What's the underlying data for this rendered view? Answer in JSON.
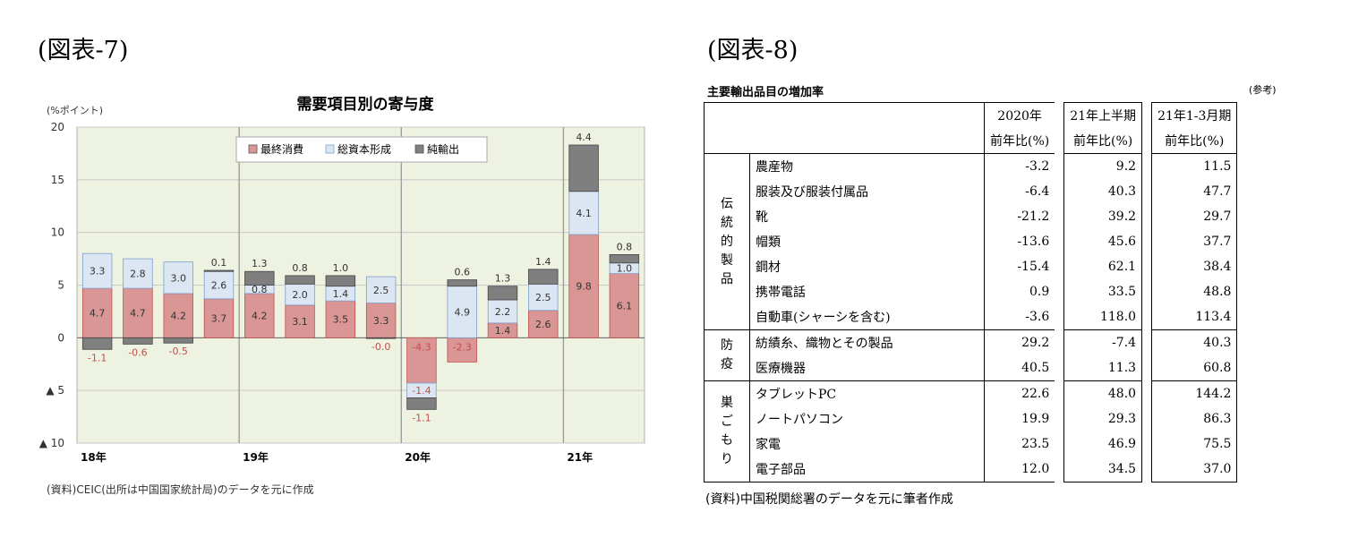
{
  "figure7": {
    "fig_title": "(図表-7)",
    "source": "(資料)CEIC(出所は中国国家統計局)のデータを元に作成"
  },
  "figure8": {
    "fig_title": "(図表-8)",
    "table_title": "主要輸出品目の増加率",
    "reference": "(参考)",
    "source": "(資料)中国税関総署のデータを元に筆者作成",
    "headers": {
      "col1": [
        "2020年",
        "前年比(%)"
      ],
      "col2": [
        "21年上半期",
        "前年比(%)"
      ],
      "col3": [
        "21年1-3月期",
        "前年比(%)"
      ]
    },
    "groups": [
      {
        "category": "伝統的製品",
        "items": [
          {
            "name": "農産物",
            "v2020": "-3.2",
            "h1_21": "9.2",
            "q1_21": "11.5"
          },
          {
            "name": "服装及び服装付属品",
            "v2020": "-6.4",
            "h1_21": "40.3",
            "q1_21": "47.7"
          },
          {
            "name": "靴",
            "v2020": "-21.2",
            "h1_21": "39.2",
            "q1_21": "29.7"
          },
          {
            "name": "帽類",
            "v2020": "-13.6",
            "h1_21": "45.6",
            "q1_21": "37.7"
          },
          {
            "name": "鋼材",
            "v2020": "-15.4",
            "h1_21": "62.1",
            "q1_21": "38.4"
          },
          {
            "name": "携帯電話",
            "v2020": "0.9",
            "h1_21": "33.5",
            "q1_21": "48.8"
          },
          {
            "name": "自動車(シャーシを含む)",
            "v2020": "-3.6",
            "h1_21": "118.0",
            "q1_21": "113.4"
          }
        ]
      },
      {
        "category": "防疫",
        "items": [
          {
            "name": "紡績糸、織物とその製品",
            "v2020": "29.2",
            "h1_21": "-7.4",
            "q1_21": "40.3"
          },
          {
            "name": "医療機器",
            "v2020": "40.5",
            "h1_21": "11.3",
            "q1_21": "60.8"
          }
        ]
      },
      {
        "category": "巣ごもり",
        "items": [
          {
            "name": "タブレットPC",
            "v2020": "22.6",
            "h1_21": "48.0",
            "q1_21": "144.2"
          },
          {
            "name": "ノートパソコン",
            "v2020": "19.9",
            "h1_21": "29.3",
            "q1_21": "86.3"
          },
          {
            "name": "家電",
            "v2020": "23.5",
            "h1_21": "46.9",
            "q1_21": "75.5"
          },
          {
            "name": "電子部品",
            "v2020": "12.0",
            "h1_21": "34.5",
            "q1_21": "37.0"
          }
        ]
      }
    ]
  },
  "chart_data": {
    "type": "bar",
    "stacked": true,
    "title": "需要項目別の寄与度",
    "ylabel": "(%ポイント)",
    "ylim": [
      -10,
      20
    ],
    "yticks": [
      20,
      15,
      10,
      5,
      0,
      -5,
      -10
    ],
    "ytick_labels": [
      "20",
      "15",
      "10",
      "5",
      "0",
      "▲ 5",
      "▲ 10"
    ],
    "categories": [
      "18Q1",
      "18Q2",
      "18Q3",
      "18Q4",
      "19Q1",
      "19Q2",
      "19Q3",
      "19Q4",
      "20Q1",
      "20Q2",
      "20Q3",
      "20Q4",
      "21Q1",
      "21Q2"
    ],
    "year_labels": [
      {
        "label": "18年",
        "start_index": 0
      },
      {
        "label": "19年",
        "start_index": 4
      },
      {
        "label": "20年",
        "start_index": 8
      },
      {
        "label": "21年",
        "start_index": 12
      }
    ],
    "grid": true,
    "legend_position": "top",
    "background_color": "#eef2e0",
    "series": [
      {
        "name": "最終消費",
        "color": "#d99694",
        "values": [
          4.7,
          4.7,
          4.2,
          3.7,
          4.2,
          3.1,
          3.5,
          3.3,
          -4.3,
          -2.3,
          1.4,
          2.6,
          9.8,
          6.1
        ],
        "labels": [
          "4.7",
          "4.7",
          "4.2",
          "3.7",
          "4.2",
          "3.1",
          "3.5",
          "3.3",
          "-4.3",
          "-2.3",
          "1.4",
          "2.6",
          "9.8",
          "6.1"
        ]
      },
      {
        "name": "総資本形成",
        "color": "#dce6f2",
        "values": [
          3.3,
          2.8,
          3.0,
          2.6,
          0.8,
          2.0,
          1.4,
          2.5,
          -1.4,
          4.9,
          2.2,
          2.5,
          4.1,
          1.0
        ],
        "labels": [
          "3.3",
          "2.8",
          "3.0",
          "2.6",
          "0.8",
          "2.0",
          "1.4",
          "2.5",
          "-1.4",
          "4.9",
          "2.2",
          "2.5",
          "4.1",
          "1.0"
        ]
      },
      {
        "name": "純輸出",
        "color": "#7f7f7f",
        "values": [
          -1.1,
          -0.6,
          -0.5,
          0.1,
          1.3,
          0.8,
          1.0,
          -0.04,
          -1.1,
          0.6,
          1.3,
          1.4,
          4.4,
          0.8
        ],
        "labels": [
          "-1.1",
          "-0.6",
          "-0.5",
          "0.1",
          "1.3",
          "0.8",
          "1.0",
          "-0.0",
          "-1.1",
          "0.6",
          "1.3",
          "1.4",
          "4.4",
          "0.8"
        ]
      }
    ]
  }
}
